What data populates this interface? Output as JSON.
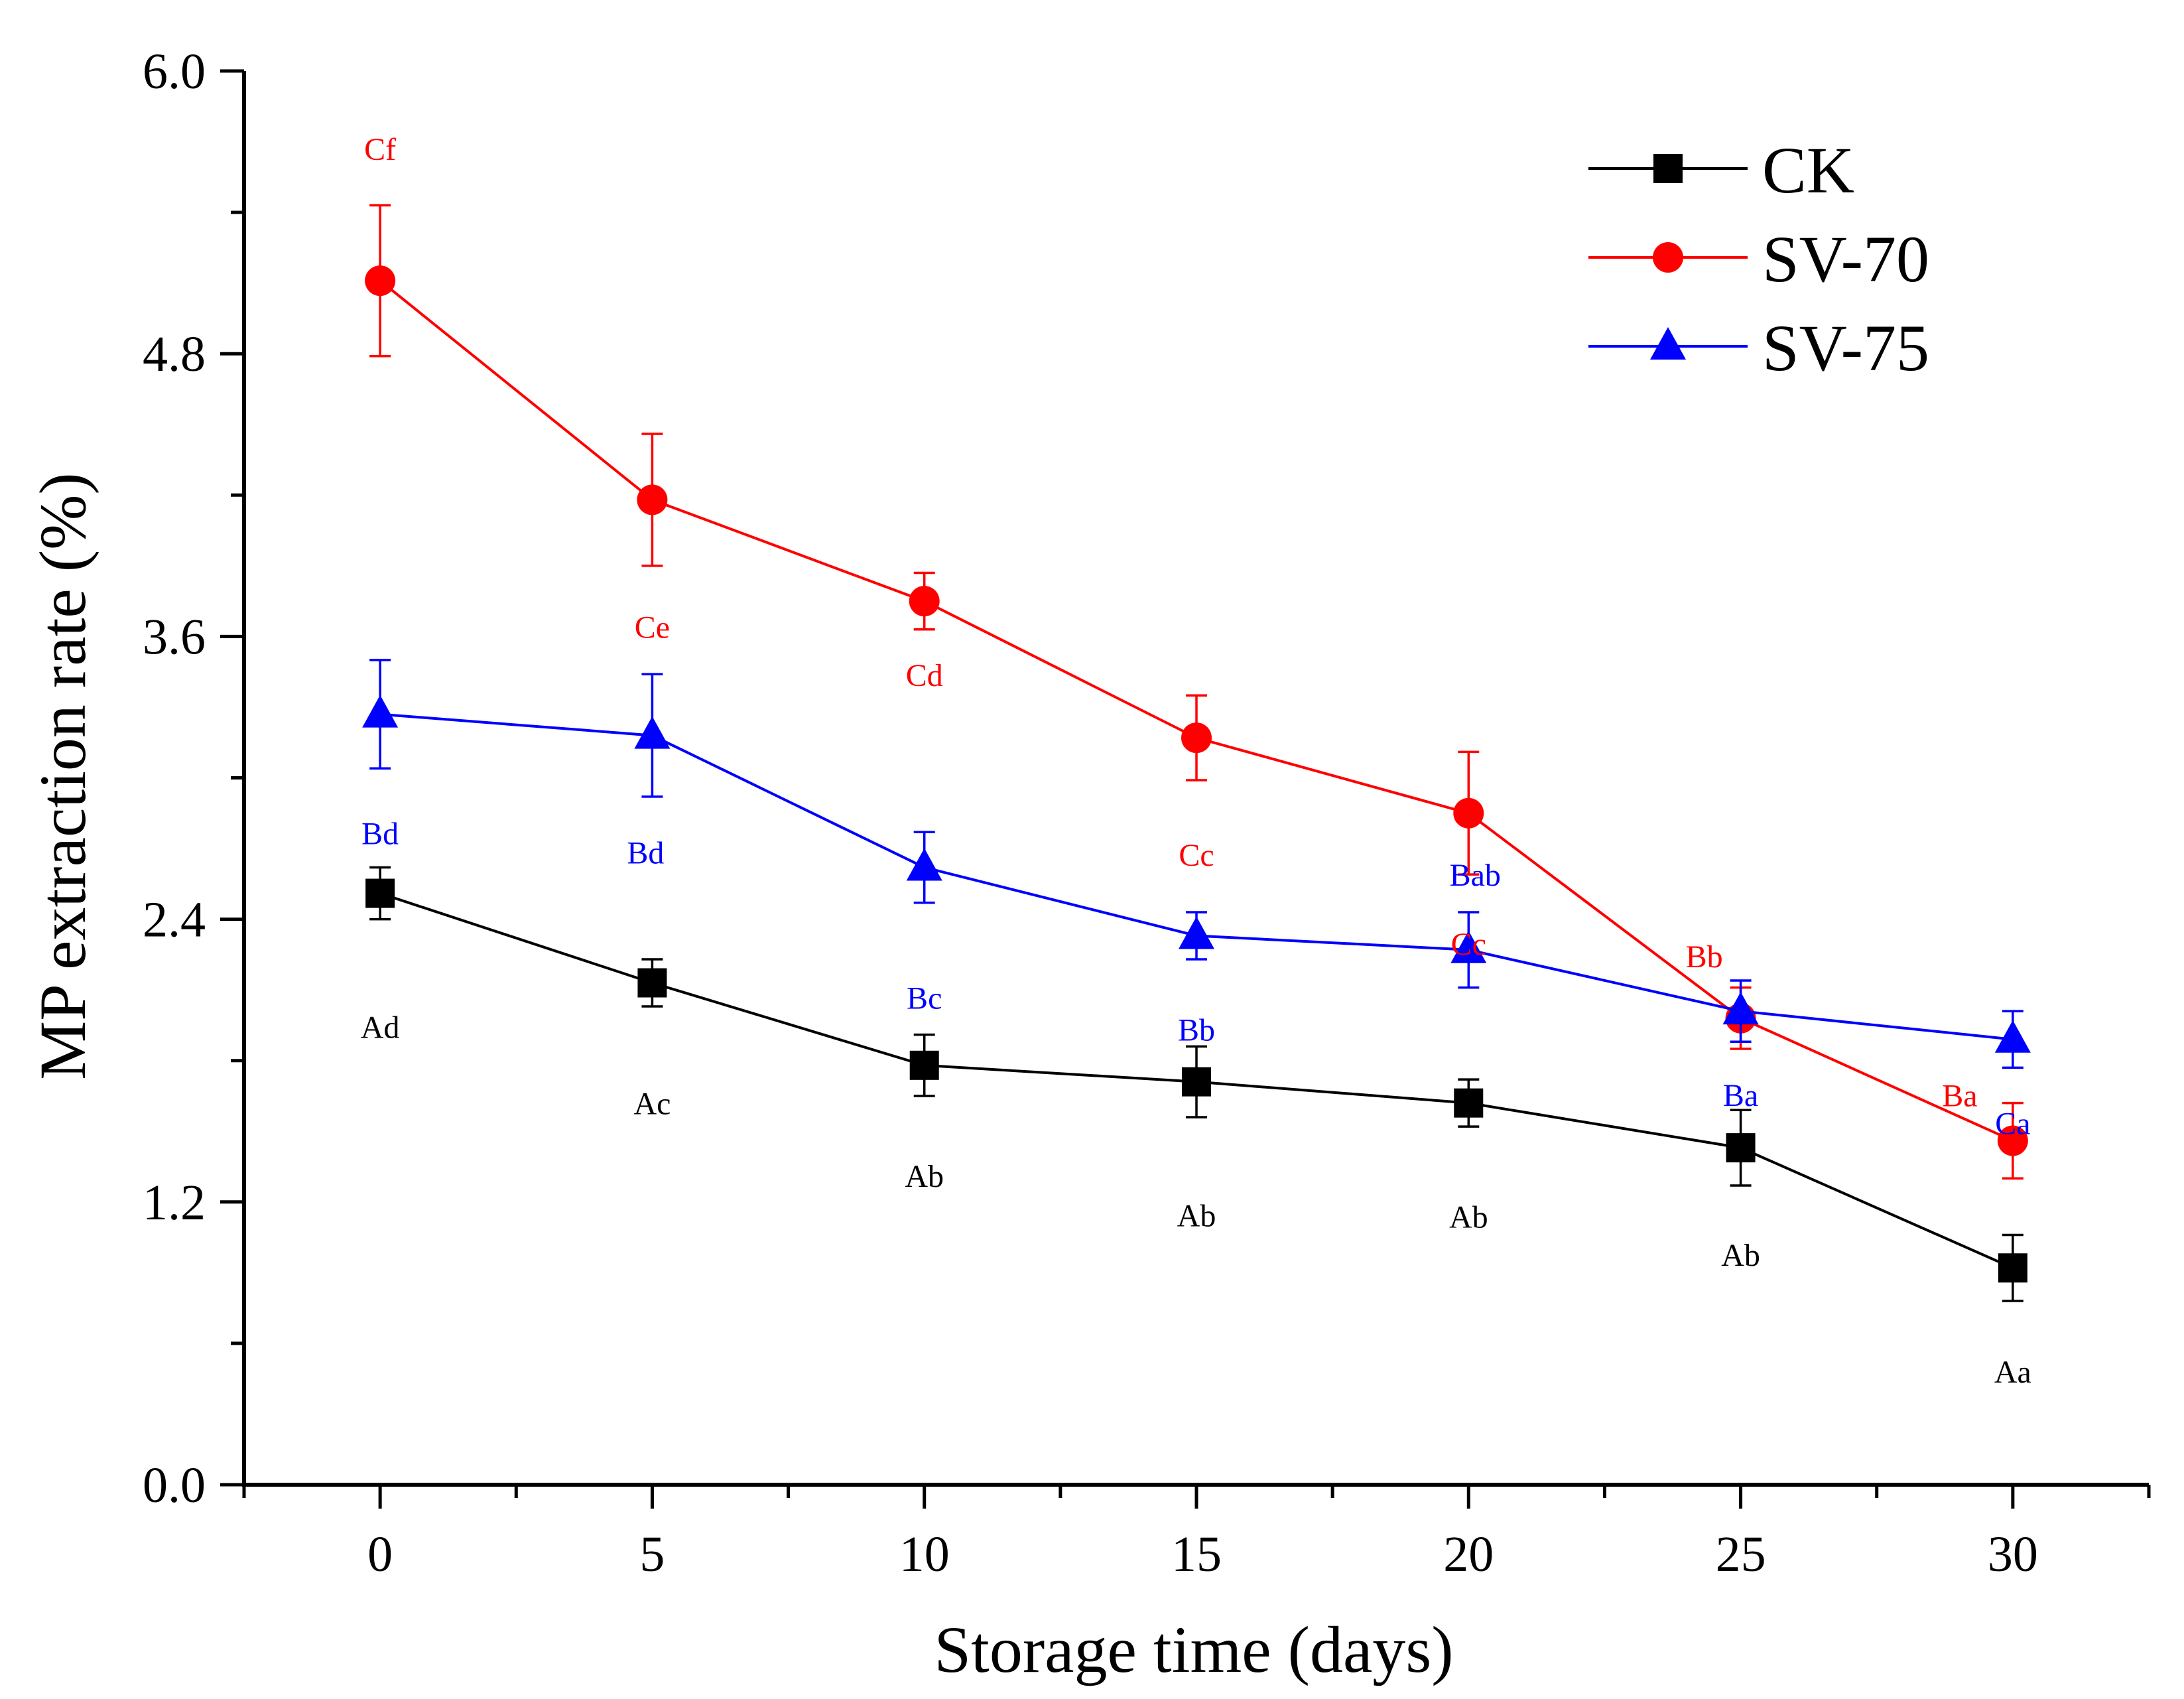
{
  "chart_data": {
    "type": "line",
    "xlabel": "Storage time (days)",
    "ylabel": "MP extraction rate (%)",
    "x": [
      0,
      5,
      10,
      15,
      20,
      25,
      30
    ],
    "xlim": [
      -2.5,
      32.5
    ],
    "ylim": [
      0.0,
      6.0
    ],
    "xticks": [
      0,
      5,
      10,
      15,
      20,
      25,
      30
    ],
    "yticks": [
      "0.0",
      "1.2",
      "2.4",
      "3.6",
      "4.8",
      "6.0"
    ],
    "ytick_values": [
      0.0,
      1.2,
      2.4,
      3.6,
      4.8,
      6.0
    ],
    "yminor": [
      0.6,
      1.8,
      3.0,
      4.2,
      5.4
    ],
    "grid": false,
    "legend_position": "top-right",
    "series": [
      {
        "name": "CK",
        "color": "#000000",
        "marker": "square",
        "values": [
          2.51,
          2.13,
          1.78,
          1.71,
          1.62,
          1.43,
          0.92
        ],
        "errors": [
          0.11,
          0.1,
          0.13,
          0.15,
          0.1,
          0.16,
          0.14
        ],
        "labels": [
          "Ad",
          "Ac",
          "Ab",
          "Ab",
          "Ab",
          "Ab",
          "Aa"
        ]
      },
      {
        "name": "SV-70",
        "color": "#ff0000",
        "marker": "circle",
        "values": [
          5.11,
          4.18,
          3.75,
          3.17,
          2.85,
          1.98,
          1.46
        ],
        "errors": [
          0.32,
          0.28,
          0.12,
          0.18,
          0.26,
          0.13,
          0.16
        ],
        "labels": [
          "Cf",
          "Ce",
          "Cd",
          "Cc",
          "Cc",
          "Bb",
          "Ba"
        ]
      },
      {
        "name": "SV-75",
        "color": "#0000ff",
        "marker": "triangle",
        "values": [
          3.27,
          3.18,
          2.62,
          2.33,
          2.27,
          2.01,
          1.89
        ],
        "errors": [
          0.23,
          0.26,
          0.15,
          0.1,
          0.16,
          0.13,
          0.12
        ],
        "labels": [
          "Bd",
          "Bd",
          "Bc",
          "Bb",
          "Bab",
          "Ba",
          "Ca"
        ]
      }
    ]
  }
}
